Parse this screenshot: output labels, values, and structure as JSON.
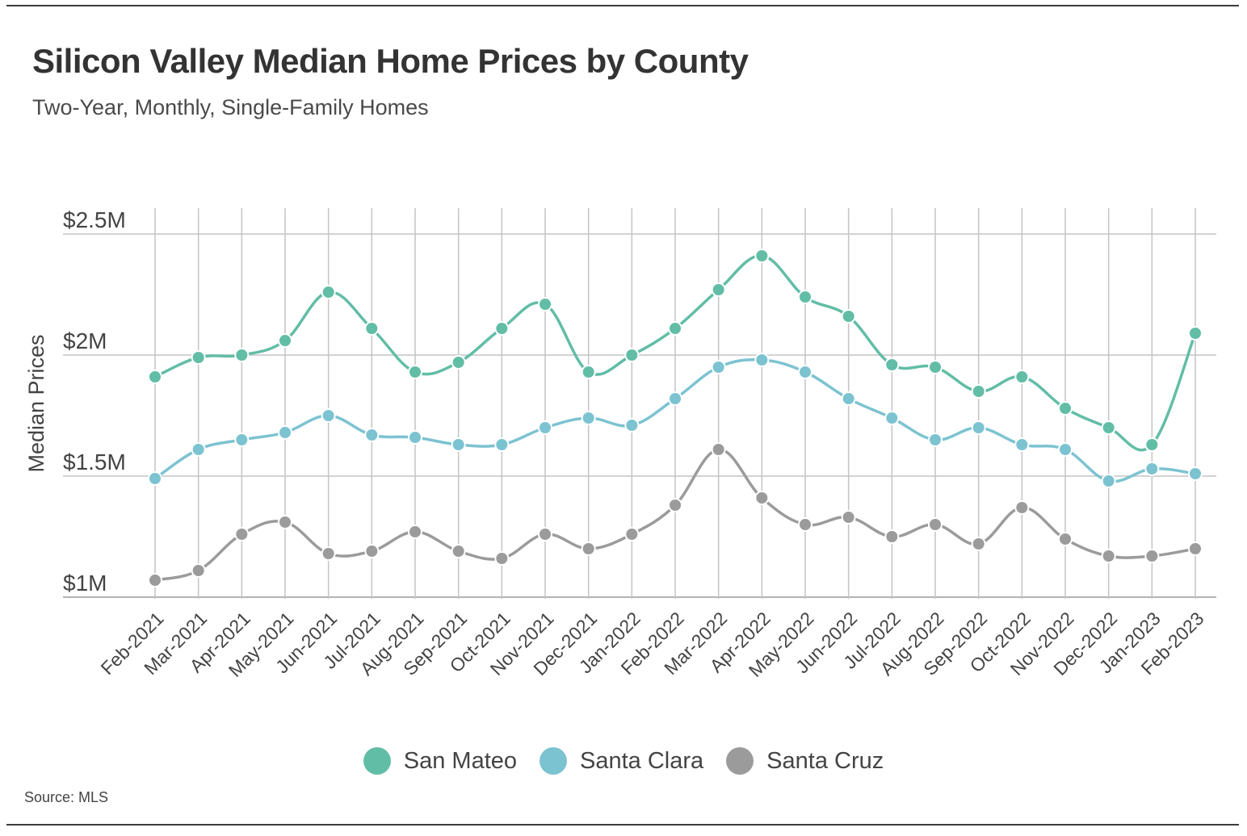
{
  "title": "Silicon Valley Median Home Prices by County",
  "subtitle": "Two-Year, Monthly, Single-Family Homes",
  "source": "Source:  MLS",
  "chart_data": {
    "type": "line",
    "title": "Silicon Valley Median Home Prices by County",
    "subtitle": "Two-Year, Monthly, Single-Family Homes",
    "xlabel": "",
    "ylabel": "Median Prices",
    "ylim": [
      1.0,
      2.6
    ],
    "yticks": [
      1.0,
      1.5,
      2.0,
      2.5
    ],
    "ytick_labels": [
      "$1M",
      "$1.5M",
      "$2M",
      "$2.5M"
    ],
    "grid": true,
    "legend_position": "bottom",
    "categories": [
      "Feb-2021",
      "Mar-2021",
      "Apr-2021",
      "May-2021",
      "Jun-2021",
      "Jul-2021",
      "Aug-2021",
      "Sep-2021",
      "Oct-2021",
      "Nov-2021",
      "Dec-2021",
      "Jan-2022",
      "Feb-2022",
      "Mar-2022",
      "Apr-2022",
      "May-2022",
      "Jun-2022",
      "Jul-2022",
      "Aug-2022",
      "Sep-2022",
      "Oct-2022",
      "Nov-2022",
      "Dec-2022",
      "Jan-2023",
      "Feb-2023"
    ],
    "series": [
      {
        "name": "San Mateo",
        "color": "#62bda6",
        "values": [
          1.91,
          1.99,
          2.0,
          2.06,
          2.26,
          2.11,
          1.93,
          1.97,
          2.11,
          2.21,
          1.93,
          2.0,
          2.11,
          2.27,
          2.41,
          2.24,
          2.16,
          1.96,
          1.95,
          1.85,
          1.91,
          1.78,
          1.7,
          1.63,
          2.09
        ]
      },
      {
        "name": "Santa Clara",
        "color": "#7cc3d1",
        "values": [
          1.49,
          1.61,
          1.65,
          1.68,
          1.75,
          1.67,
          1.66,
          1.63,
          1.63,
          1.7,
          1.74,
          1.71,
          1.82,
          1.95,
          1.98,
          1.93,
          1.82,
          1.74,
          1.65,
          1.7,
          1.63,
          1.61,
          1.48,
          1.53,
          1.51
        ]
      },
      {
        "name": "Santa Cruz",
        "color": "#9b9b9b",
        "values": [
          1.07,
          1.11,
          1.26,
          1.31,
          1.18,
          1.19,
          1.27,
          1.19,
          1.16,
          1.26,
          1.2,
          1.26,
          1.38,
          1.61,
          1.41,
          1.3,
          1.33,
          1.25,
          1.3,
          1.22,
          1.37,
          1.24,
          1.17,
          1.17,
          1.2
        ]
      }
    ]
  }
}
